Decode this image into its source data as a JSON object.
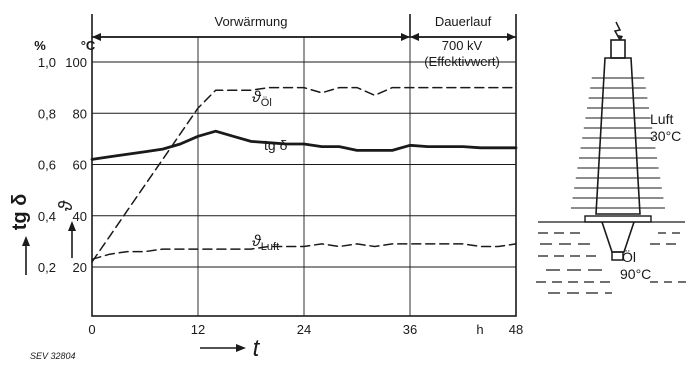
{
  "chart_data": {
    "type": "line",
    "x": [
      0,
      2,
      4,
      6,
      8,
      10,
      12,
      14,
      16,
      18,
      20,
      22,
      24,
      26,
      28,
      30,
      32,
      34,
      36,
      38,
      40,
      42,
      44,
      46,
      48
    ],
    "xlabel": "t",
    "x_unit": "h",
    "x_ticks": [
      "0",
      "12",
      "24",
      "36",
      "48"
    ],
    "xlim": [
      0,
      48
    ],
    "y_left_outer": {
      "unit": "%",
      "label": "tg δ",
      "ticks": [
        "0,2",
        "0,4",
        "0,6",
        "0,8",
        "1,0"
      ],
      "ylim": [
        0.2,
        1.0
      ]
    },
    "y_left_inner": {
      "unit": "°C",
      "label": "ϑ",
      "ticks": [
        "20",
        "40",
        "60",
        "80",
        "100"
      ],
      "ylim": [
        20,
        100
      ]
    },
    "phases": [
      {
        "label": "Vorwärmung",
        "from": 0,
        "to": 36
      },
      {
        "label": "Dauerlauf",
        "from": 36,
        "to": 48
      }
    ],
    "phase_note": [
      "700 kV",
      "(Effektivwert)"
    ],
    "series": [
      {
        "name": "ϑÖl",
        "name_main": "ϑ",
        "name_sub": "Öl",
        "axis": "°C",
        "style": "dashed",
        "values": [
          22,
          32,
          42,
          52,
          62,
          72,
          82,
          89,
          89,
          89,
          90,
          90,
          90,
          88,
          90,
          90,
          87,
          90,
          90,
          90,
          90,
          90,
          90,
          90,
          90
        ]
      },
      {
        "name": "tg δ",
        "axis": "%",
        "style": "solid-bold",
        "values": [
          0.62,
          0.63,
          0.64,
          0.65,
          0.66,
          0.68,
          0.71,
          0.73,
          0.71,
          0.69,
          0.685,
          0.68,
          0.68,
          0.67,
          0.67,
          0.655,
          0.655,
          0.655,
          0.675,
          0.67,
          0.67,
          0.67,
          0.665,
          0.665,
          0.665
        ]
      },
      {
        "name": "ϑLuft",
        "name_main": "ϑ",
        "name_sub": "Luft",
        "axis": "°C",
        "style": "dashed",
        "values": [
          23,
          25,
          26,
          26,
          27,
          27,
          27,
          27,
          27,
          27,
          28,
          28,
          28,
          29,
          28,
          29,
          28,
          29,
          29,
          29,
          29,
          29,
          28,
          28,
          29
        ]
      }
    ],
    "grid": true
  },
  "figure_id": "SEV 32804",
  "inset": {
    "air_label": "Luft",
    "air_temp": "30°C",
    "oil_label": "Öl",
    "oil_temp": "90°C"
  }
}
